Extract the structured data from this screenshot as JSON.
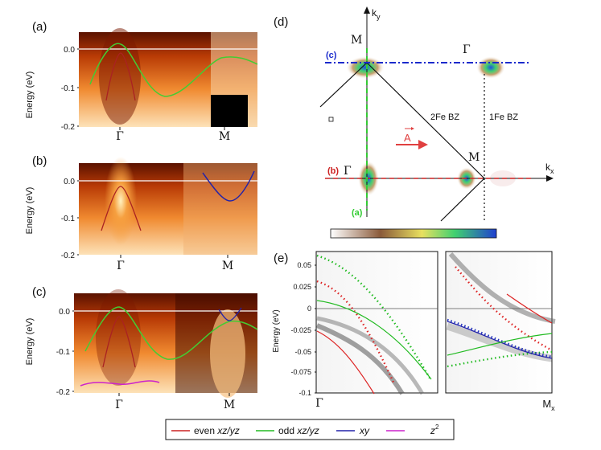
{
  "panels": {
    "a": {
      "label": "(a)",
      "ylabel": "Energy (eV)",
      "yticks": [
        "0.0",
        "-0.1",
        "-0.2"
      ],
      "xticks": [
        "Γ",
        "M"
      ]
    },
    "b": {
      "label": "(b)",
      "ylabel": "Energy (eV)",
      "yticks": [
        "0.0",
        "-0.1",
        "-0.2"
      ],
      "xticks": [
        "Γ",
        "M"
      ]
    },
    "c": {
      "label": "(c)",
      "ylabel": "Energy (eV)",
      "yticks": [
        "0.0",
        "-0.1",
        "-0.2"
      ],
      "xticks": [
        "Γ",
        "M"
      ]
    },
    "d": {
      "label": "(d)",
      "ky": "k",
      "ky_sub": "y",
      "kx": "k",
      "kx_sub": "x",
      "bz2": "2Fe BZ",
      "bz1": "1Fe BZ",
      "M_top": "M",
      "Gamma_top": "Γ",
      "M_right": "M",
      "Gamma_left": "Γ",
      "cut_c": "(c)",
      "cut_b": "(b)",
      "cut_a": "(a)",
      "polarization": "A"
    },
    "e": {
      "label": "(e)",
      "ylabel": "Energy (eV)",
      "yticks": [
        "0.05",
        "0.025",
        "0",
        "-0.025",
        "-0.05",
        "-0.075",
        "-0.1"
      ],
      "xtick_left": "Γ",
      "xtick_right": "M",
      "xtick_right_sub": "x"
    }
  },
  "legend": {
    "items": [
      {
        "label": "even ",
        "italic": "xz/yz",
        "color": "#cc2222"
      },
      {
        "label": "odd ",
        "italic": "xz/yz",
        "color": "#22bb22"
      },
      {
        "label": "",
        "italic": "xy",
        "color": "#2222aa"
      },
      {
        "label": "",
        "italic": "z",
        "sup": "2",
        "color": "#cc22cc"
      }
    ]
  }
}
